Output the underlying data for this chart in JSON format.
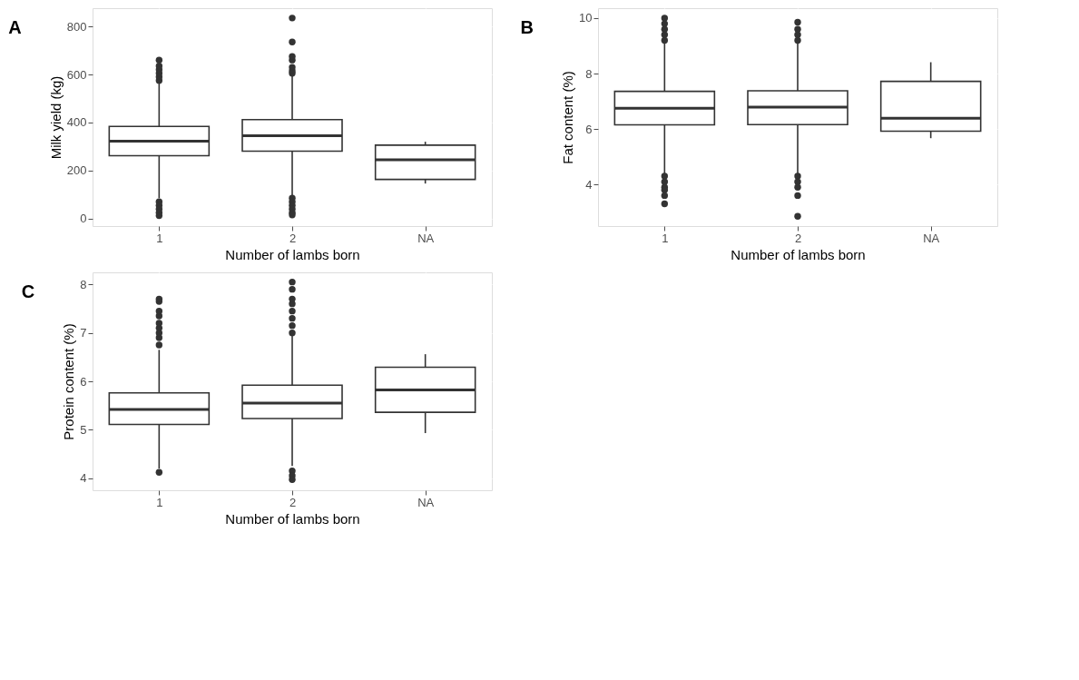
{
  "chart_data": [
    {
      "type": "box",
      "title": "A",
      "xlabel": "Number of lambs born",
      "ylabel": "Milk yield (kg)",
      "categories": [
        "1",
        "2",
        "NA"
      ],
      "ylim": [
        -31,
        876
      ],
      "yticks": [
        0,
        200,
        400,
        600,
        800
      ],
      "grid": true,
      "color": "#333333",
      "boxes": [
        {
          "low": 85,
          "q1": 262,
          "median": 322,
          "q3": 384,
          "high": 565,
          "outliers": [
            575,
            590,
            605,
            620,
            635,
            660,
            70,
            55,
            40,
            25,
            12
          ]
        },
        {
          "low": 95,
          "q1": 281,
          "median": 345,
          "q3": 412,
          "high": 598,
          "outliers": [
            605,
            615,
            630,
            660,
            675,
            735,
            835,
            85,
            70,
            55,
            40,
            25,
            15
          ]
        },
        {
          "low": 146,
          "q1": 163,
          "median": 245,
          "q3": 306,
          "high": 320
        }
      ]
    },
    {
      "type": "box",
      "title": "B",
      "xlabel": "Number of lambs born",
      "ylabel": "Fat content (%)",
      "categories": [
        "1",
        "2",
        "NA"
      ],
      "ylim": [
        2.5,
        10.36
      ],
      "yticks": [
        4,
        6,
        8,
        10
      ],
      "grid": true,
      "color": "#333333",
      "boxes": [
        {
          "low": 4.4,
          "q1": 6.15,
          "median": 6.75,
          "q3": 7.36,
          "high": 9.1,
          "outliers": [
            9.2,
            9.4,
            9.6,
            9.8,
            10.0,
            4.3,
            4.1,
            3.9,
            3.8,
            3.6,
            3.3
          ]
        },
        {
          "low": 4.4,
          "q1": 6.16,
          "median": 6.79,
          "q3": 7.38,
          "high": 9.1,
          "outliers": [
            9.2,
            9.4,
            9.6,
            9.85,
            4.3,
            4.1,
            3.9,
            3.6,
            2.85
          ]
        },
        {
          "low": 5.67,
          "q1": 5.92,
          "median": 6.39,
          "q3": 7.72,
          "high": 8.41
        }
      ]
    },
    {
      "type": "box",
      "title": "C",
      "xlabel": "Number of lambs born",
      "ylabel": "Protein content (%)",
      "categories": [
        "1",
        "2",
        "NA"
      ],
      "ylim": [
        3.75,
        8.25
      ],
      "yticks": [
        4,
        5,
        6,
        7,
        8
      ],
      "grid": true,
      "color": "#333333",
      "boxes": [
        {
          "low": 4.2,
          "q1": 5.11,
          "median": 5.42,
          "q3": 5.76,
          "high": 6.65,
          "outliers": [
            6.75,
            6.9,
            7.0,
            7.1,
            7.2,
            7.35,
            7.45,
            7.65,
            7.7,
            4.12
          ]
        },
        {
          "low": 4.25,
          "q1": 5.23,
          "median": 5.55,
          "q3": 5.92,
          "high": 6.95,
          "outliers": [
            7.0,
            7.15,
            7.3,
            7.45,
            7.6,
            7.7,
            7.9,
            8.05,
            4.15,
            4.05,
            3.97
          ]
        },
        {
          "low": 4.93,
          "q1": 5.36,
          "median": 5.82,
          "q3": 6.29,
          "high": 6.56
        }
      ]
    }
  ]
}
